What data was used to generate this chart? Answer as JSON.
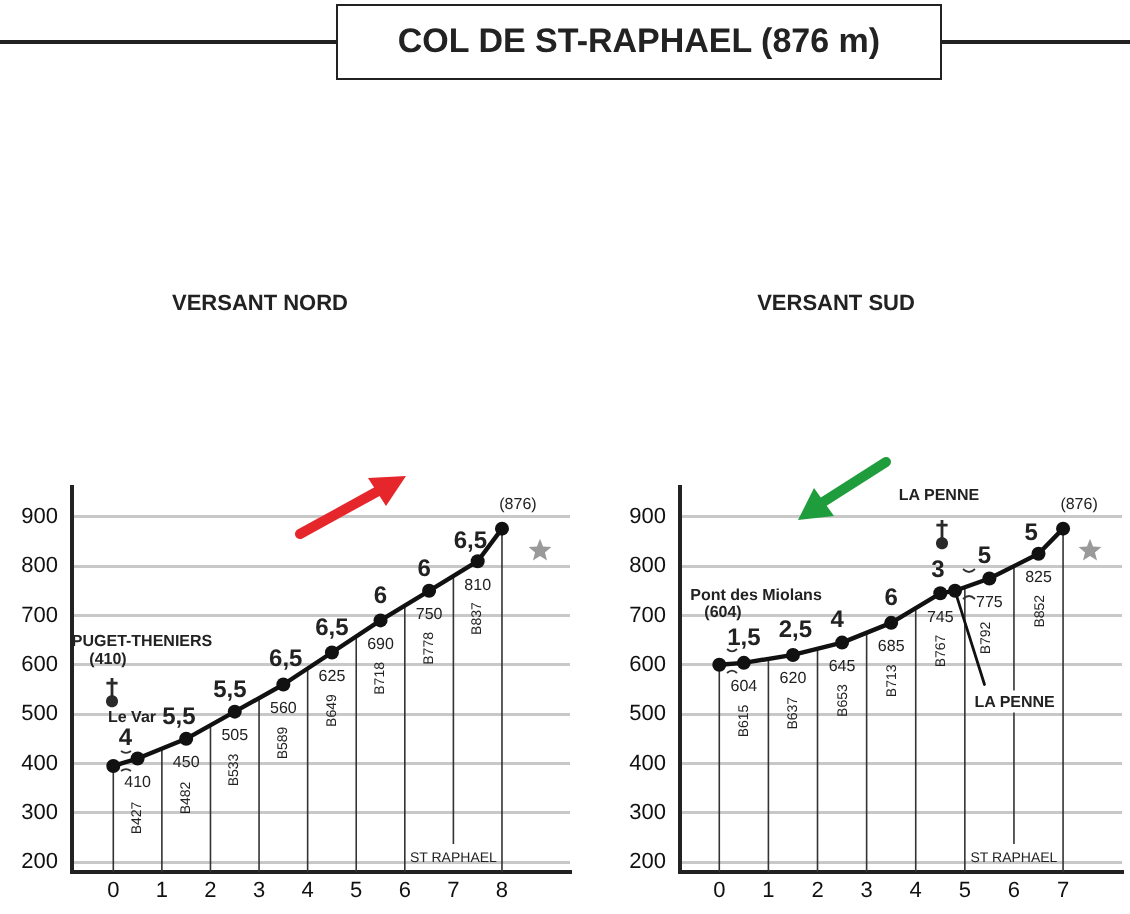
{
  "chart_data": [
    {
      "type": "line",
      "title": "COL DE ST-RAPHAEL (876 m)",
      "subtitle": "VERSANT NORD",
      "x": [
        0,
        0.5,
        1.5,
        2.5,
        3.5,
        4.5,
        5.5,
        6.5,
        7.5,
        8
      ],
      "series": [
        {
          "color": "#111111",
          "values": [
            395,
            410,
            450,
            505,
            560,
            625,
            690,
            750,
            810,
            876
          ],
          "value_labels": [
            null,
            "410",
            "450",
            "505",
            "560",
            "625",
            "690",
            "750",
            "810",
            "(876)"
          ]
        }
      ],
      "xlim": [
        -0.85,
        9.4
      ],
      "xticks": [
        0,
        1,
        2,
        3,
        4,
        5,
        6,
        7,
        8
      ],
      "ylim": [
        180,
        960
      ],
      "yticks": [
        200,
        300,
        400,
        500,
        600,
        700,
        800,
        900
      ],
      "grid": "y",
      "marker": "circle",
      "ref_lines": [
        {
          "axis": "x",
          "value": 0
        },
        {
          "axis": "x",
          "value": 1
        },
        {
          "axis": "x",
          "value": 2
        },
        {
          "axis": "x",
          "value": 3
        },
        {
          "axis": "x",
          "value": 4
        },
        {
          "axis": "x",
          "value": 5
        },
        {
          "axis": "x",
          "value": 6
        },
        {
          "axis": "x",
          "value": 7,
          "label": "ST RAPHAEL"
        },
        {
          "axis": "x",
          "value": 8
        }
      ],
      "annotations": [
        "PUGET-THENIERS",
        "(410)",
        "Le Var",
        "B427",
        "B482",
        "B533",
        "B589",
        "B649",
        "B718",
        "B778",
        "B837",
        {
          "text": "4",
          "x": 0.25,
          "y": 402
        },
        {
          "text": "5,5",
          "x": 1.35,
          "y": 444
        },
        {
          "text": "5,5",
          "x": 2.4,
          "y": 500
        },
        {
          "text": "6,5",
          "x": 3.55,
          "y": 563
        },
        {
          "text": "6,5",
          "x": 4.5,
          "y": 625
        },
        {
          "text": "6",
          "x": 5.5,
          "y": 690
        },
        {
          "text": "6",
          "x": 6.4,
          "y": 744
        },
        {
          "text": "6,5",
          "x": 7.35,
          "y": 801
        }
      ]
    },
    {
      "type": "line",
      "subtitle": "VERSANT SUD",
      "x": [
        0,
        0.5,
        1.5,
        2.5,
        3.5,
        4.5,
        4.8,
        5.5,
        6.5,
        7
      ],
      "series": [
        {
          "color": "#111111",
          "values": [
            600,
            604,
            620,
            645,
            685,
            745,
            750,
            775,
            825,
            876
          ],
          "value_labels": [
            null,
            "604",
            "620",
            "645",
            "685",
            "745",
            null,
            "775",
            "825",
            "(876)"
          ]
        },
        {
          "name": "LA PENNE",
          "type": "line",
          "color": "#111111",
          "marker": "none",
          "x": [
            4.8,
            5.4
          ],
          "values": [
            750,
            560
          ]
        }
      ],
      "xlim": [
        -0.8,
        8.2
      ],
      "xticks": [
        0,
        1,
        2,
        3,
        4,
        5,
        6,
        7
      ],
      "ylim": [
        180,
        960
      ],
      "yticks": [
        200,
        300,
        400,
        500,
        600,
        700,
        800,
        900
      ],
      "grid": "y",
      "marker": "circle",
      "ref_lines": [
        {
          "axis": "x",
          "value": 0
        },
        {
          "axis": "x",
          "value": 1
        },
        {
          "axis": "x",
          "value": 2
        },
        {
          "axis": "x",
          "value": 3
        },
        {
          "axis": "x",
          "value": 4
        },
        {
          "axis": "x",
          "value": 5
        },
        {
          "axis": "x",
          "value": 6,
          "label": "ST RAPHAEL"
        },
        {
          "axis": "x",
          "value": 7
        }
      ],
      "annotations": [
        "Pont des Miolans",
        "(604)",
        "LA PENNE",
        "B615",
        "B637",
        "B653",
        "B713",
        "B767",
        "B792",
        "B852",
        {
          "text": "1,5",
          "x": 0.5,
          "y": 604
        },
        {
          "text": "2,5",
          "x": 1.55,
          "y": 621
        },
        {
          "text": "4",
          "x": 2.4,
          "y": 642
        },
        {
          "text": "6",
          "x": 3.5,
          "y": 685
        },
        {
          "text": "3",
          "x": 4.45,
          "y": 742
        },
        {
          "text": "5",
          "x": 5.4,
          "y": 771
        },
        {
          "text": "5",
          "x": 6.35,
          "y": 818
        }
      ]
    }
  ]
}
